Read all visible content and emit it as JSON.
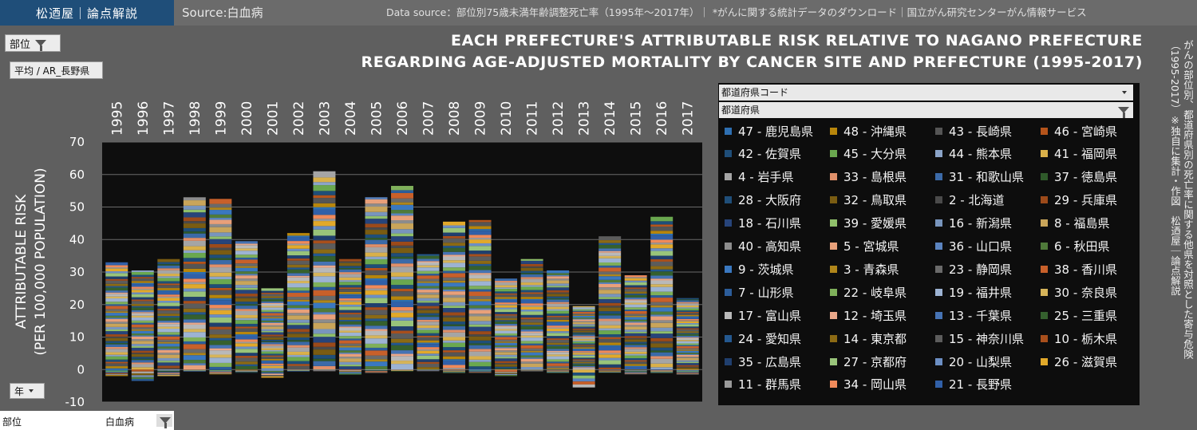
{
  "header": {
    "brand": "松迺屋｜論点解説",
    "source": "Source:白血病",
    "data_source": "Data source：部位別75歳未満年齢調整死亡率（1995年～2017年）｜ *がんに関する統計データのダウンロード｜国立がん研究センターがん情報サービス"
  },
  "controls": {
    "site_filter": "部位",
    "measure_button": "平均 / AR_長野県",
    "year_filter": "年",
    "bottom_label": "部位",
    "bottom_value": "白血病"
  },
  "title": {
    "line1": "EACH PREFECTURE'S ATTRIBUTABLE RISK RELATIVE TO NAGANO PREFECTURE",
    "line2": "REGARDING AGE-ADJUSTED MORTALITY BY CANCER SITE AND PREFECTURE (1995-2017)"
  },
  "side_note": "がんの部位別、都道府県別の死亡率に関する他県を対照とした寄与危険（1995-2017）※独自に集計・作図　松迺屋｜論点解説",
  "legend": {
    "header1": "都道府県コード",
    "header2": "都道府県",
    "items": [
      {
        "label": "47 - 鹿児島県",
        "color": "#2e6fb1"
      },
      {
        "label": "48 - 沖縄県",
        "color": "#b8860b"
      },
      {
        "label": "43 - 長崎県",
        "color": "#555555"
      },
      {
        "label": "46 - 宮崎県",
        "color": "#b5541b"
      },
      {
        "label": "42 - 佐賀県",
        "color": "#1f4e79"
      },
      {
        "label": "45 - 大分県",
        "color": "#6aa84f"
      },
      {
        "label": "44 - 熊本県",
        "color": "#8ba4c8"
      },
      {
        "label": "41 - 福岡県",
        "color": "#d9b04a"
      },
      {
        "label": "4 - 岩手県",
        "color": "#a5a5a5"
      },
      {
        "label": "33 - 島根県",
        "color": "#e0906a"
      },
      {
        "label": "31 - 和歌山県",
        "color": "#3b6aa8"
      },
      {
        "label": "37 - 徳島県",
        "color": "#2f5a2a"
      },
      {
        "label": "28 - 大阪府",
        "color": "#1f4e79"
      },
      {
        "label": "32 - 鳥取県",
        "color": "#7a5c12"
      },
      {
        "label": "2 - 北海道",
        "color": "#4a4a4a"
      },
      {
        "label": "29 - 兵庫県",
        "color": "#9c4a1a"
      },
      {
        "label": "18 - 石川県",
        "color": "#27447a"
      },
      {
        "label": "39 - 愛媛県",
        "color": "#8fbf6a"
      },
      {
        "label": "16 - 新潟県",
        "color": "#7895bd"
      },
      {
        "label": "8 - 福島県",
        "color": "#c9a55a"
      },
      {
        "label": "40 - 高知県",
        "color": "#8c8c8c"
      },
      {
        "label": "5 - 宮城県",
        "color": "#e8a07a"
      },
      {
        "label": "36 - 山口県",
        "color": "#5b84c0"
      },
      {
        "label": "6 - 秋田県",
        "color": "#4f7a3a"
      },
      {
        "label": "9 - 茨城県",
        "color": "#3a78c0"
      },
      {
        "label": "3 - 青森県",
        "color": "#b0861a"
      },
      {
        "label": "23 - 静岡県",
        "color": "#6a6a6a"
      },
      {
        "label": "38 - 香川県",
        "color": "#c8602a"
      },
      {
        "label": "7 - 山形県",
        "color": "#2c5d9a"
      },
      {
        "label": "22 - 岐阜県",
        "color": "#7fb05a"
      },
      {
        "label": "19 - 福井県",
        "color": "#9db3d3"
      },
      {
        "label": "30 - 奈良県",
        "color": "#d6b45a"
      },
      {
        "label": "17 - 富山県",
        "color": "#b9b9b9"
      },
      {
        "label": "12 - 埼玉県",
        "color": "#eaa88a"
      },
      {
        "label": "13 - 千葉県",
        "color": "#4673b4"
      },
      {
        "label": "25 - 三重県",
        "color": "#35602e"
      },
      {
        "label": "24 - 愛知県",
        "color": "#24588f"
      },
      {
        "label": "14 - 東京都",
        "color": "#8c6a14"
      },
      {
        "label": "15 - 神奈川県",
        "color": "#5c5c5c"
      },
      {
        "label": "10 - 栃木県",
        "color": "#a84f1c"
      },
      {
        "label": "35 - 広島県",
        "color": "#203f6e"
      },
      {
        "label": "27 - 京都府",
        "color": "#99c47a"
      },
      {
        "label": "20 - 山梨県",
        "color": "#6c8fc4"
      },
      {
        "label": "26 - 滋賀県",
        "color": "#e2a92a"
      },
      {
        "label": "11 - 群馬県",
        "color": "#9a9a9a"
      },
      {
        "label": "34 - 岡山県",
        "color": "#f08a5a"
      },
      {
        "label": "21 - 長野県",
        "color": "#3160a8"
      }
    ]
  },
  "chart_data": {
    "type": "bar",
    "stacked": true,
    "title": "EACH PREFECTURE'S ATTRIBUTABLE RISK RELATIVE TO NAGANO PREFECTURE REGARDING AGE-ADJUSTED MORTALITY BY CANCER SITE AND PREFECTURE (1995-2017)",
    "ylabel": "ATTRIBUTABLE RISK (PER 100,000 POPULATION)",
    "ylabel_line1": "ATTRIBUTABLE RISK",
    "ylabel_line2": "(PER 100,000 POPULATION)",
    "categories": [
      "1995",
      "1996",
      "1997",
      "1998",
      "1999",
      "2000",
      "2001",
      "2002",
      "2003",
      "2004",
      "2005",
      "2006",
      "2007",
      "2008",
      "2009",
      "2010",
      "2011",
      "2012",
      "2013",
      "2014",
      "2015",
      "2016",
      "2017"
    ],
    "positive_totals": [
      33,
      30.5,
      34,
      53,
      52.5,
      39.5,
      25,
      42,
      61,
      34,
      53,
      56.5,
      35.5,
      45.5,
      46,
      28,
      34,
      30.5,
      19.5,
      41,
      29,
      47,
      22
    ],
    "negative_totals": [
      -2,
      -3.5,
      -2,
      -0.5,
      -1.5,
      -1,
      -2.5,
      -0.5,
      -0.5,
      -1.5,
      -1,
      -0.5,
      -0.5,
      -1,
      -1,
      -2,
      -0.5,
      -1,
      -5.5,
      -1,
      -1.5,
      -1,
      -1.5
    ],
    "ylim": [
      -10,
      70
    ],
    "yticks": [
      -10,
      0,
      10,
      20,
      30,
      40,
      50,
      60,
      70
    ],
    "grid": true,
    "legend_position": "right"
  }
}
